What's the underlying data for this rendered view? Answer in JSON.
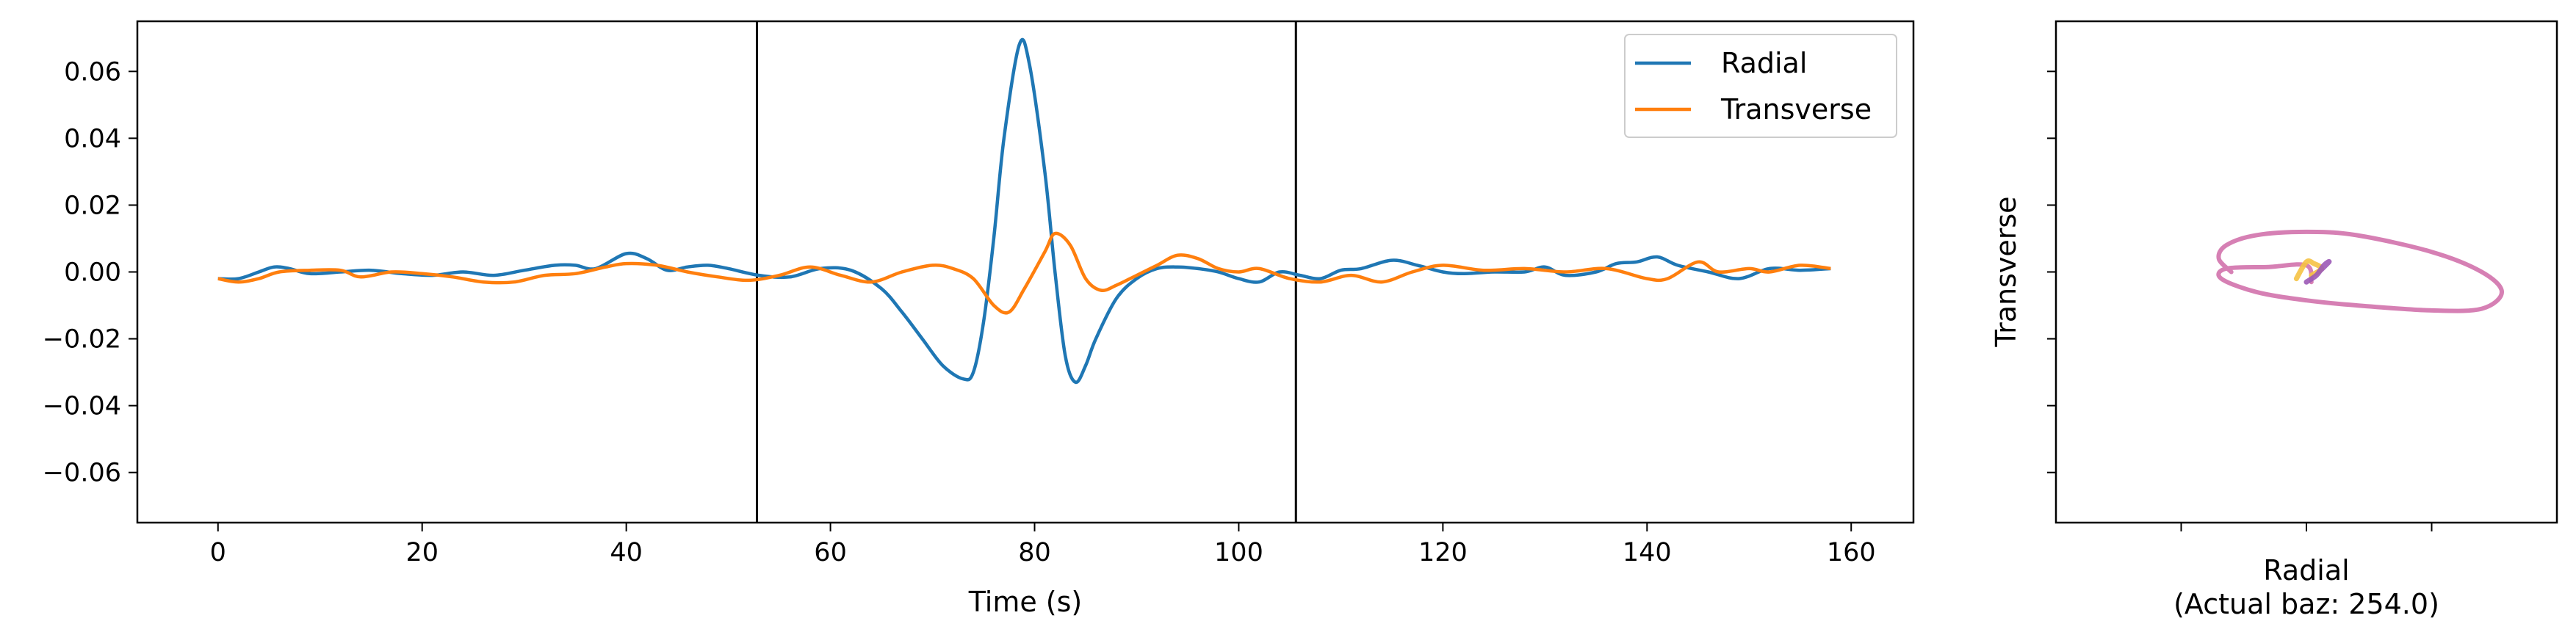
{
  "chart_data": [
    {
      "type": "line",
      "xlabel": "Time (s)",
      "ylabel": "",
      "xlim": [
        -7.9,
        166.1
      ],
      "ylim": [
        -0.075,
        0.075
      ],
      "xticks": [
        0,
        20,
        40,
        60,
        80,
        100,
        120,
        140,
        160
      ],
      "yticks": [
        -0.06,
        -0.04,
        -0.02,
        0.0,
        0.02,
        0.04,
        0.06
      ],
      "ytick_labels": [
        "−0.06",
        "−0.04",
        "−0.02",
        "0.00",
        "0.02",
        "0.04",
        "0.06"
      ],
      "vlines": [
        52.8,
        105.6
      ],
      "legend": {
        "location": "top-right",
        "entries": [
          "Radial",
          "Transverse"
        ]
      },
      "series": [
        {
          "name": "Radial",
          "color": "#1f77b4",
          "x": [
            0,
            2,
            4,
            5.5,
            7,
            9,
            12,
            15,
            18,
            21,
            24,
            27,
            30,
            33,
            35,
            37,
            40,
            42,
            44,
            46,
            48,
            50,
            53,
            56,
            59,
            62,
            65,
            67,
            69,
            71,
            73,
            74,
            75,
            76,
            77,
            78.5,
            79.5,
            81,
            82,
            83,
            84,
            85,
            86,
            88,
            90,
            92,
            94,
            96,
            98,
            100,
            102,
            104,
            106,
            108,
            110,
            112,
            115,
            117.5,
            120,
            122,
            125,
            128,
            130,
            132,
            135,
            137,
            139,
            141,
            143,
            146,
            149,
            152,
            155,
            158
          ],
          "y": [
            -0.002,
            -0.002,
            0.0,
            0.0015,
            0.001,
            -0.0005,
            0.0,
            0.0005,
            -0.0005,
            -0.001,
            0.0,
            -0.001,
            0.0005,
            0.002,
            0.002,
            0.001,
            0.0055,
            0.004,
            0.0005,
            0.0015,
            0.002,
            0.001,
            -0.001,
            -0.0015,
            0.001,
            0.0005,
            -0.005,
            -0.012,
            -0.02,
            -0.028,
            -0.032,
            -0.03,
            -0.015,
            0.01,
            0.04,
            0.068,
            0.062,
            0.03,
            0.0,
            -0.025,
            -0.033,
            -0.028,
            -0.02,
            -0.008,
            -0.002,
            0.001,
            0.0015,
            0.001,
            0.0,
            -0.002,
            -0.003,
            0.0,
            -0.001,
            -0.002,
            0.0005,
            0.001,
            0.0035,
            0.002,
            0.0,
            -0.0005,
            0.0,
            0.0,
            0.0015,
            -0.001,
            0.0,
            0.0025,
            0.003,
            0.0045,
            0.002,
            0.0,
            -0.002,
            0.001,
            0.0005,
            0.001
          ]
        },
        {
          "name": "Transverse",
          "color": "#ff7f0e",
          "x": [
            0,
            2,
            4,
            6,
            9,
            12,
            14,
            17,
            20,
            23,
            26,
            29,
            32,
            35,
            38,
            40,
            43,
            46,
            49,
            52,
            55,
            58,
            61,
            64,
            67,
            70,
            72,
            74,
            76,
            77.5,
            79,
            81,
            82,
            83.5,
            85,
            86.5,
            88,
            90,
            92,
            94,
            96,
            98,
            100,
            102,
            105,
            108,
            111,
            114,
            117,
            120,
            124,
            128,
            132,
            136,
            140,
            142,
            145,
            147,
            150,
            152,
            155,
            158
          ],
          "y": [
            -0.002,
            -0.003,
            -0.002,
            0.0,
            0.0005,
            0.0005,
            -0.0015,
            0.0,
            -0.0005,
            -0.0015,
            -0.003,
            -0.003,
            -0.001,
            -0.0005,
            0.0015,
            0.0025,
            0.002,
            0.0,
            -0.0015,
            -0.0025,
            -0.001,
            0.0015,
            -0.001,
            -0.003,
            0.0,
            0.002,
            0.001,
            -0.002,
            -0.01,
            -0.012,
            -0.005,
            0.006,
            0.0115,
            0.008,
            -0.002,
            -0.0055,
            -0.004,
            -0.001,
            0.002,
            0.005,
            0.004,
            0.001,
            0.0,
            0.001,
            -0.002,
            -0.003,
            -0.001,
            -0.003,
            0.0,
            0.002,
            0.0005,
            0.001,
            0.0,
            0.001,
            -0.002,
            -0.002,
            0.003,
            0.0,
            0.001,
            0.0,
            0.002,
            0.001
          ]
        }
      ]
    },
    {
      "type": "scatter",
      "xlabel": "Radial",
      "xlabel_line2": "(Actual baz: 254.0)",
      "ylabel": "Transverse",
      "tick_labels_visible": false,
      "xlim": [
        -0.1,
        0.1
      ],
      "ylim": [
        -0.075,
        0.075
      ],
      "xticks": [
        -0.05,
        0.0,
        0.05
      ],
      "yticks": [
        -0.06,
        -0.04,
        -0.02,
        0.0,
        0.02,
        0.04,
        0.06
      ],
      "series": [
        {
          "name": "",
          "color": "#c8559b",
          "curve": "particle-motion ellipse",
          "x": [
            -0.03,
            -0.035,
            -0.032,
            -0.02,
            0.0,
            0.02,
            0.05,
            0.07,
            0.078,
            0.07,
            0.05,
            0.02,
            0.0,
            -0.02,
            -0.034,
            -0.032,
            -0.015,
            0.0,
            0.002
          ],
          "y": [
            0.0,
            0.004,
            0.008,
            0.011,
            0.012,
            0.011,
            0.006,
            0.0,
            -0.006,
            -0.011,
            -0.0115,
            -0.01,
            -0.0085,
            -0.006,
            -0.002,
            0.001,
            0.0015,
            0.002,
            -0.003
          ]
        },
        {
          "name": "",
          "color": "#f5c242",
          "curve": "small cluster near origin",
          "x": [
            -0.004,
            0.0,
            0.003,
            0.006,
            0.002
          ],
          "y": [
            -0.002,
            0.003,
            0.0025,
            0.001,
            -0.001
          ]
        },
        {
          "name": "",
          "color": "#9b59b6",
          "curve": "small cluster near origin",
          "x": [
            0.0,
            0.004,
            0.007,
            0.009,
            0.005
          ],
          "y": [
            -0.003,
            -0.001,
            0.002,
            0.003,
            0.0
          ]
        }
      ]
    }
  ]
}
